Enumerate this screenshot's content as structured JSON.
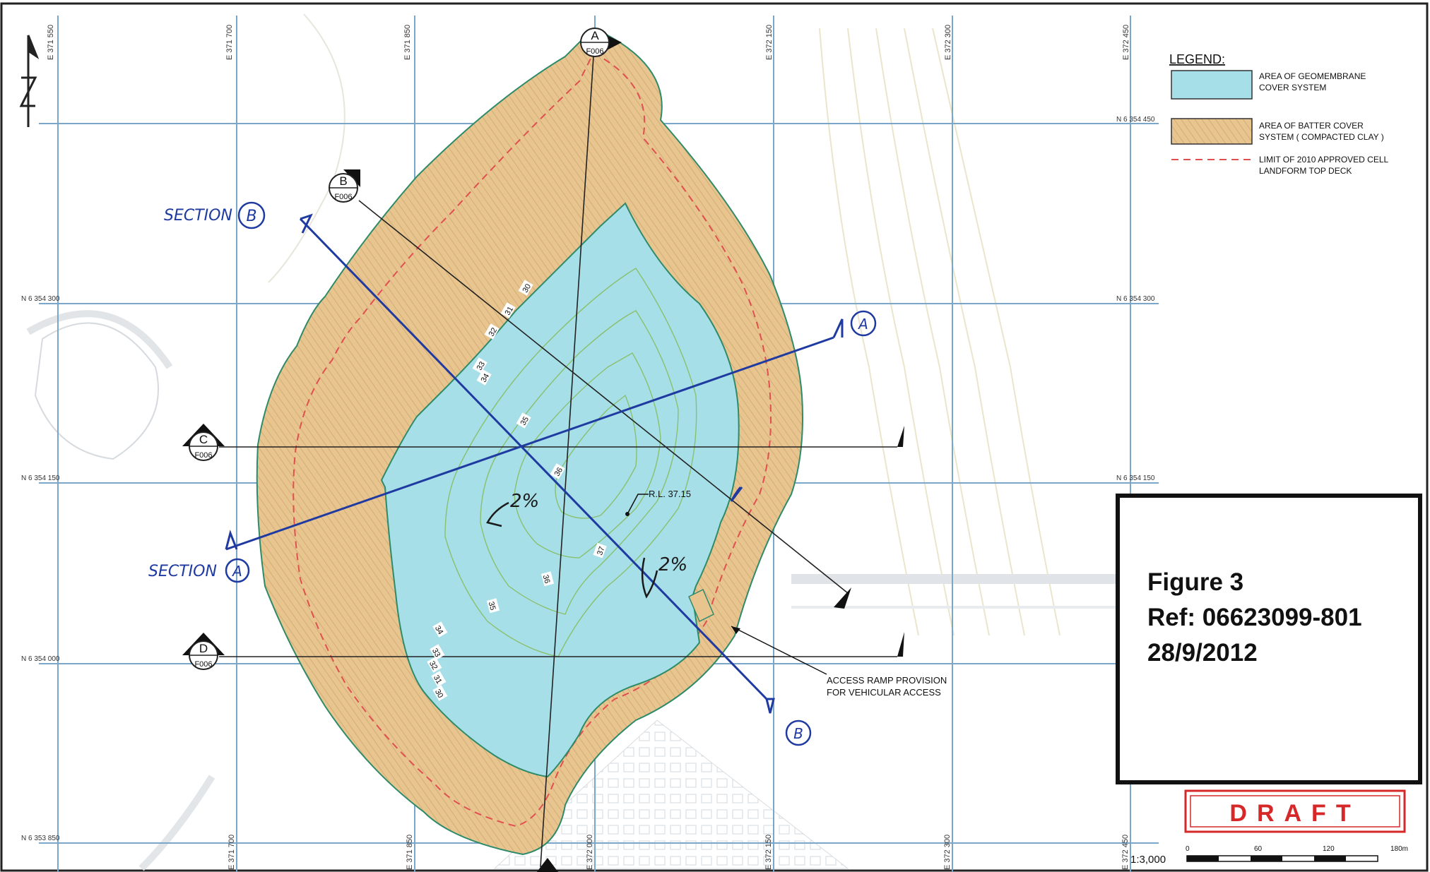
{
  "legend": {
    "title": "LEGEND:",
    "items": [
      {
        "color": "#a6dfe8",
        "lines": [
          "AREA OF GEOMEMBRANE",
          "COVER SYSTEM"
        ]
      },
      {
        "color": "#e8c48f",
        "lines": [
          "AREA OF BATTER COVER",
          "SYSTEM ( COMPACTED CLAY )"
        ]
      },
      {
        "color": "#e05050",
        "lines": [
          "LIMIT OF 2010 APPROVED CELL",
          "LANDFORM TOP DECK"
        ]
      }
    ]
  },
  "grid": {
    "eastings": [
      "E 371 550",
      "E 371 700",
      "E 371 850",
      "E 372 000",
      "E 372 150",
      "E 372 300",
      "E 372 450"
    ],
    "northings": [
      "N 6 354 450",
      "N 6 354 300",
      "N 6 354 150",
      "N 6 354 000",
      "N 6 353 850"
    ]
  },
  "section_markers": [
    {
      "letter": "A",
      "sheet": "F006"
    },
    {
      "letter": "B",
      "sheet": "F006"
    },
    {
      "letter": "C",
      "sheet": "F006"
    },
    {
      "letter": "D",
      "sheet": "F006"
    }
  ],
  "handwriting": {
    "section_b": "SECTION",
    "section_b_letter": "B",
    "section_a": "SECTION",
    "section_a_letter": "A",
    "a_prime": "A",
    "b_prime": "B",
    "slope_1": "2%",
    "slope_2": "2%"
  },
  "contour_labels": [
    "30",
    "31",
    "32",
    "33",
    "34",
    "35",
    "36",
    "37",
    "36",
    "35",
    "34",
    "33",
    "32",
    "31",
    "30"
  ],
  "annotations": {
    "rl": "R.L. 37.15",
    "ramp_1": "ACCESS RAMP PROVISION",
    "ramp_2": "FOR VEHICULAR ACCESS"
  },
  "figure_box": {
    "line1": "Figure 3",
    "line2": "Ref: 06623099-801",
    "line3": "28/9/2012"
  },
  "stamp": "DRAFT",
  "scale": {
    "ratio": "1:3,000",
    "ticks": [
      "0",
      "60",
      "120",
      "180m"
    ]
  },
  "colors": {
    "geomembrane": "#a6dfe8",
    "batter": "#e8c48f",
    "grid": "#7aa7c9",
    "handwriting": "#1f3aa0",
    "stamp": "#d62828"
  }
}
